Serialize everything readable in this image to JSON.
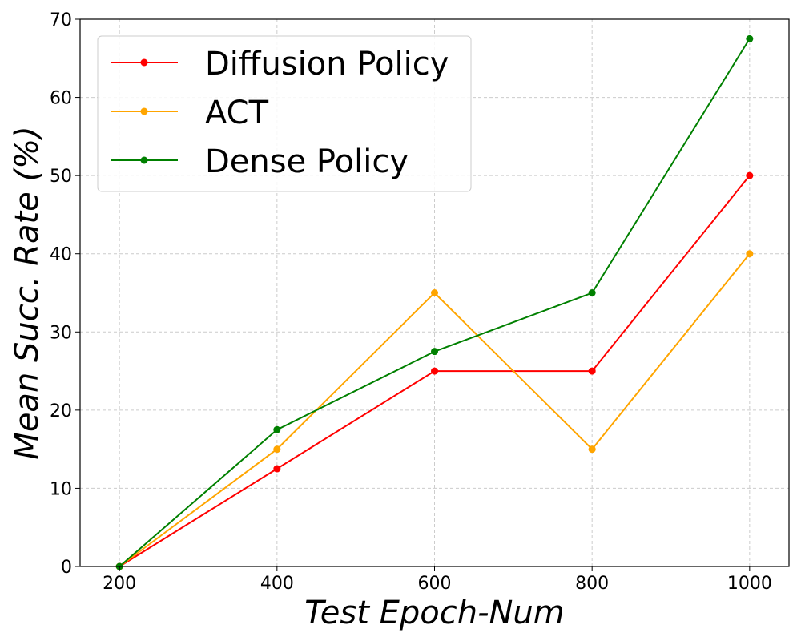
{
  "chart_data": {
    "type": "line",
    "title": "",
    "xlabel": "Test Epoch-Num",
    "ylabel": "Mean Succ. Rate (%)",
    "x": [
      200,
      400,
      600,
      800,
      1000
    ],
    "xticks": [
      200,
      400,
      600,
      800,
      1000
    ],
    "yticks": [
      0,
      10,
      20,
      30,
      40,
      50,
      60,
      70
    ],
    "xlim": [
      150,
      1050
    ],
    "ylim": [
      0,
      70
    ],
    "grid": true,
    "legend_position": "top-left",
    "series": [
      {
        "name": "Diffusion Policy",
        "color": "#ff0000",
        "values": [
          0,
          12.5,
          25,
          25,
          50
        ]
      },
      {
        "name": "ACT",
        "color": "#ffa500",
        "values": [
          0,
          15,
          35,
          15,
          40
        ]
      },
      {
        "name": "Dense Policy",
        "color": "#008000",
        "values": [
          0,
          17.5,
          27.5,
          35,
          67.5
        ]
      }
    ]
  }
}
